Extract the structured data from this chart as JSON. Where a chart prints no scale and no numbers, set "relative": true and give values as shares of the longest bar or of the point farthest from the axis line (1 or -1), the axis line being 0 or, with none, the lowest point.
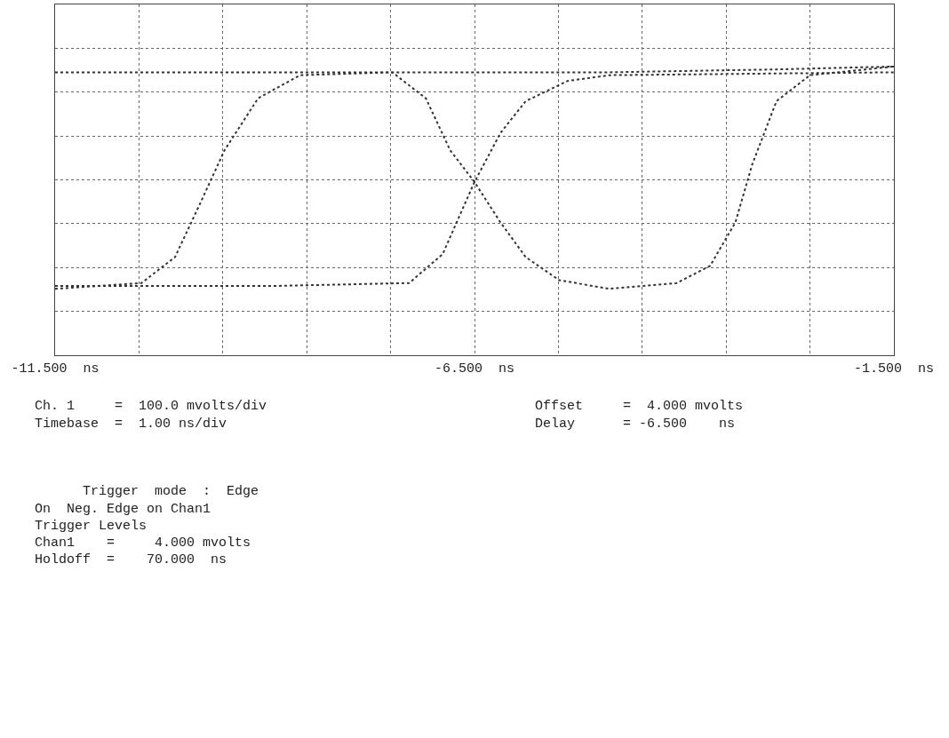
{
  "chart_data": {
    "type": "line",
    "relative": true,
    "grid": true,
    "legend": false,
    "marker": "none",
    "line_style": "dotted",
    "xlim": [
      -11.5,
      -1.5
    ],
    "xticks": [
      {
        "value": -11.5,
        "label": "-11.500  ns"
      },
      {
        "value": -10.5,
        "label": null
      },
      {
        "value": -9.5,
        "label": null
      },
      {
        "value": -8.5,
        "label": null
      },
      {
        "value": -7.5,
        "label": null
      },
      {
        "value": -6.5,
        "label": "-6.500  ns"
      },
      {
        "value": -5.5,
        "label": null
      },
      {
        "value": -4.5,
        "label": null
      },
      {
        "value": -3.5,
        "label": null
      },
      {
        "value": -2.5,
        "label": null
      },
      {
        "value": -1.5,
        "label": "-1.500  ns"
      }
    ],
    "series": [
      {
        "color": "#333333",
        "x": [
          -11.5,
          -10.47,
          -10.07,
          -9.78,
          -9.48,
          -9.08,
          -8.58,
          -7.48,
          -6.5,
          -4.89,
          -2.9,
          -1.5
        ],
        "values": [
          0.23,
          0.25,
          0.34,
          0.52,
          0.71,
          0.89,
          0.97,
          0.98,
          0.98,
          0.98,
          0.99,
          1.0
        ]
      },
      {
        "color": "#333333",
        "x": [
          -11.5,
          -9.87,
          -7.48,
          -7.08,
          -6.79,
          -6.5,
          -6.19,
          -5.89,
          -5.49,
          -4.89,
          -4.09,
          -3.69,
          -3.39,
          -3.19,
          -2.9,
          -2.5,
          -1.5
        ],
        "values": [
          0.98,
          0.98,
          0.98,
          0.89,
          0.71,
          0.6,
          0.46,
          0.34,
          0.26,
          0.23,
          0.25,
          0.31,
          0.46,
          0.66,
          0.88,
          0.97,
          1.0
        ]
      },
      {
        "color": "#333333",
        "x": [
          -11.5,
          -8.88,
          -7.28,
          -6.88,
          -6.5,
          -6.19,
          -5.89,
          -5.39,
          -4.89,
          -1.5
        ],
        "values": [
          0.24,
          0.24,
          0.25,
          0.35,
          0.6,
          0.77,
          0.88,
          0.95,
          0.97,
          0.98
        ]
      }
    ],
    "annotations": [
      "Ch. 1     =  100.0 mvolts/div",
      "Offset     =  4.000 mvolts",
      "Timebase  =  1.00 ns/div",
      "Delay      = -6.500    ns",
      "      Trigger  mode  :  Edge",
      "On  Neg. Edge on Chan1",
      "Trigger Levels",
      "Chan1    =     4.000 mvolts",
      "Holdoff  =    70.000  ns"
    ]
  }
}
